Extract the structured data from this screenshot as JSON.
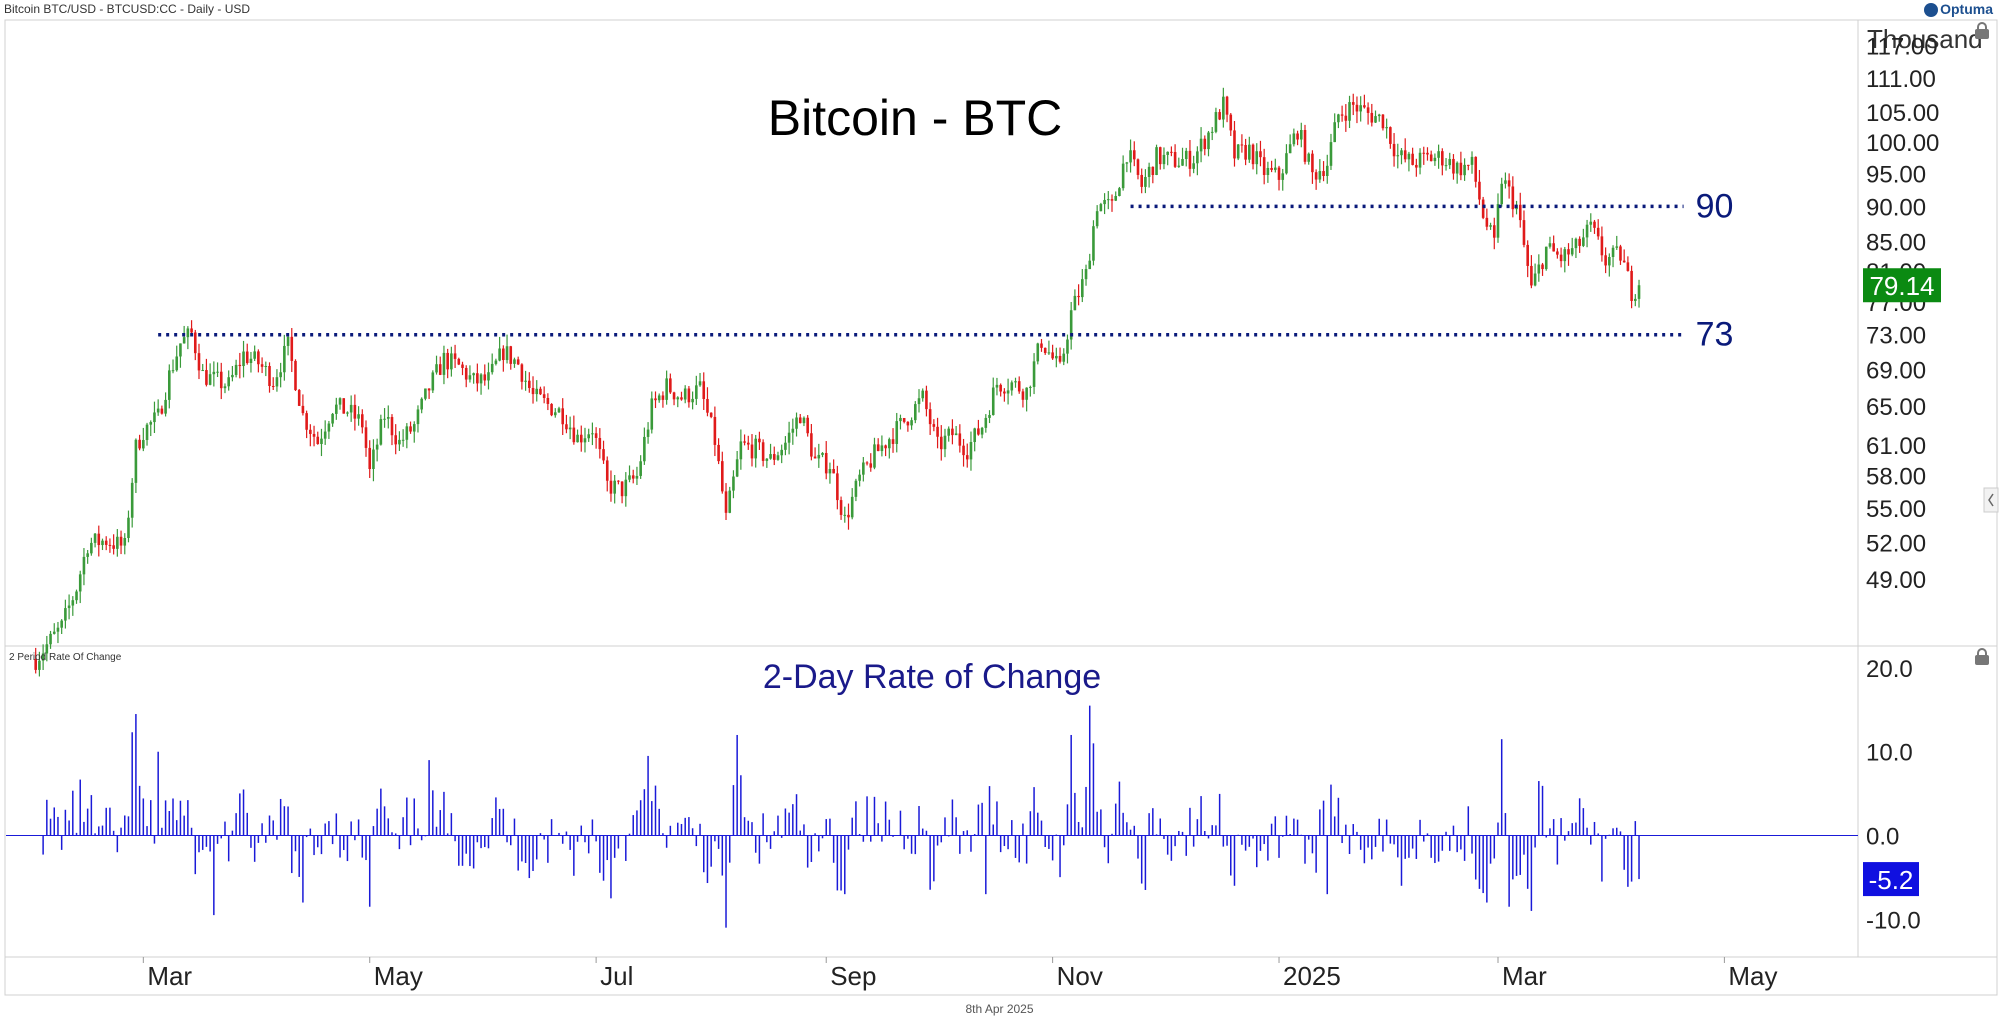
{
  "header": {
    "symbol_info": "Bitcoin BTC/USD - BTCUSD:CC - Daily - USD",
    "brand": "Optuma"
  },
  "footer": {
    "date": "8th Apr 2025"
  },
  "colors": {
    "up": "#3a9a3a",
    "down": "#e01a1a",
    "level_line": "#0a1a7a",
    "roc_bar": "#1a1ad8",
    "last_price_badge": "#0b8a12",
    "roc_badge": "#1010e0"
  },
  "icons": [
    "lock-icon",
    "collapse-chevron-icon"
  ],
  "chart_data": [
    {
      "type": "candlestick",
      "title": "Bitcoin - BTC",
      "units_label": "Thousand",
      "y_ticks": [
        49,
        52,
        55,
        58,
        61,
        65,
        69,
        73,
        77,
        81,
        85,
        90,
        95,
        100,
        105,
        111,
        117
      ],
      "y_tick_labels": [
        "49.00",
        "52.00",
        "55.00",
        "58.00",
        "61.00",
        "65.00",
        "69.00",
        "73.00",
        "77.00",
        "81.00",
        "85.00",
        "90.00",
        "95.00",
        "100.00",
        "105.00",
        "111.00",
        "117.00"
      ],
      "y_scale": "log",
      "ylim": [
        44,
        122
      ],
      "x_ticks": [
        "Mar",
        "May",
        "Jul",
        "Sep",
        "Nov",
        "2025",
        "Mar",
        "May"
      ],
      "x_tick_dates": [
        "2024-03-01",
        "2024-05-01",
        "2024-07-01",
        "2024-09-01",
        "2024-11-01",
        "2025-01-01",
        "2025-03-01",
        "2025-05-01"
      ],
      "x_range": [
        "2024-01-24",
        "2025-06-06"
      ],
      "last_value_label": "79.14",
      "levels": [
        {
          "label": "90",
          "value": 90,
          "from": "2024-11-22",
          "to": "2025-04-20"
        },
        {
          "label": "73",
          "value": 73,
          "from": "2024-03-05",
          "to": "2025-04-20"
        }
      ],
      "closes": [
        [
          "2024-02-01",
          43.0
        ],
        [
          "2024-02-08",
          45.3
        ],
        [
          "2024-02-12",
          48.3
        ],
        [
          "2024-02-15",
          51.9
        ],
        [
          "2024-02-20",
          52.2
        ],
        [
          "2024-02-25",
          51.6
        ],
        [
          "2024-02-28",
          60.7
        ],
        [
          "2024-03-01",
          62.4
        ],
        [
          "2024-03-05",
          63.8
        ],
        [
          "2024-03-08",
          68.3
        ],
        [
          "2024-03-11",
          72.0
        ],
        [
          "2024-03-14",
          73.1
        ],
        [
          "2024-03-17",
          68.4
        ],
        [
          "2024-03-20",
          67.8
        ],
        [
          "2024-03-24",
          67.2
        ],
        [
          "2024-03-28",
          70.7
        ],
        [
          "2024-04-01",
          69.7
        ],
        [
          "2024-04-05",
          67.8
        ],
        [
          "2024-04-09",
          71.6
        ],
        [
          "2024-04-13",
          64.0
        ],
        [
          "2024-04-17",
          61.3
        ],
        [
          "2024-04-21",
          64.9
        ],
        [
          "2024-04-25",
          64.5
        ],
        [
          "2024-04-29",
          63.1
        ],
        [
          "2024-05-01",
          58.3
        ],
        [
          "2024-05-05",
          64.0
        ],
        [
          "2024-05-09",
          61.2
        ],
        [
          "2024-05-13",
          62.9
        ],
        [
          "2024-05-17",
          66.9
        ],
        [
          "2024-05-21",
          70.1
        ],
        [
          "2024-05-25",
          69.3
        ],
        [
          "2024-05-29",
          67.6
        ],
        [
          "2024-06-02",
          67.8
        ],
        [
          "2024-06-06",
          71.1
        ],
        [
          "2024-06-10",
          69.6
        ],
        [
          "2024-06-14",
          66.0
        ],
        [
          "2024-06-18",
          65.1
        ],
        [
          "2024-06-22",
          64.2
        ],
        [
          "2024-06-26",
          61.7
        ],
        [
          "2024-06-30",
          62.7
        ],
        [
          "2024-07-04",
          57.1
        ],
        [
          "2024-07-08",
          56.7
        ],
        [
          "2024-07-12",
          57.9
        ],
        [
          "2024-07-16",
          64.8
        ],
        [
          "2024-07-20",
          67.1
        ],
        [
          "2024-07-24",
          65.9
        ],
        [
          "2024-07-29",
          66.8
        ],
        [
          "2024-08-02",
          61.4
        ],
        [
          "2024-08-05",
          54.0
        ],
        [
          "2024-08-09",
          60.9
        ],
        [
          "2024-08-13",
          60.6
        ],
        [
          "2024-08-17",
          59.5
        ],
        [
          "2024-08-21",
          61.2
        ],
        [
          "2024-08-25",
          64.2
        ],
        [
          "2024-08-29",
          59.4
        ],
        [
          "2024-09-02",
          59.1
        ],
        [
          "2024-09-06",
          53.9
        ],
        [
          "2024-09-10",
          57.7
        ],
        [
          "2024-09-14",
          60.0
        ],
        [
          "2024-09-18",
          61.7
        ],
        [
          "2024-09-22",
          63.4
        ],
        [
          "2024-09-27",
          65.8
        ],
        [
          "2024-10-01",
          60.8
        ],
        [
          "2024-10-05",
          62.1
        ],
        [
          "2024-10-09",
          60.6
        ],
        [
          "2024-10-13",
          62.9
        ],
        [
          "2024-10-17",
          67.4
        ],
        [
          "2024-10-21",
          67.4
        ],
        [
          "2024-10-25",
          66.6
        ],
        [
          "2024-10-29",
          72.3
        ],
        [
          "2024-11-03",
          68.8
        ],
        [
          "2024-11-06",
          75.6
        ],
        [
          "2024-11-10",
          80.5
        ],
        [
          "2024-11-13",
          90.4
        ],
        [
          "2024-11-17",
          89.8
        ],
        [
          "2024-11-21",
          98.4
        ],
        [
          "2024-11-25",
          93.0
        ],
        [
          "2024-11-29",
          97.5
        ],
        [
          "2024-12-05",
          96.9
        ],
        [
          "2024-12-09",
          97.4
        ],
        [
          "2024-12-13",
          101.4
        ],
        [
          "2024-12-17",
          106.1
        ],
        [
          "2024-12-20",
          97.8
        ],
        [
          "2024-12-24",
          98.7
        ],
        [
          "2024-12-28",
          95.3
        ],
        [
          "2025-01-01",
          94.4
        ],
        [
          "2025-01-06",
          102.1
        ],
        [
          "2025-01-10",
          94.7
        ],
        [
          "2025-01-14",
          96.6
        ],
        [
          "2025-01-17",
          104.5
        ],
        [
          "2025-01-21",
          106.1
        ],
        [
          "2025-01-25",
          104.7
        ],
        [
          "2025-01-29",
          103.7
        ],
        [
          "2025-02-02",
          97.7
        ],
        [
          "2025-02-06",
          96.6
        ],
        [
          "2025-02-10",
          97.4
        ],
        [
          "2025-02-14",
          97.5
        ],
        [
          "2025-02-18",
          95.8
        ],
        [
          "2025-02-22",
          96.2
        ],
        [
          "2025-02-25",
          88.7
        ],
        [
          "2025-02-28",
          84.4
        ],
        [
          "2025-03-02",
          94.2
        ],
        [
          "2025-03-06",
          89.9
        ],
        [
          "2025-03-10",
          78.6
        ],
        [
          "2025-03-14",
          84.0
        ],
        [
          "2025-03-18",
          82.7
        ],
        [
          "2025-03-22",
          84.0
        ],
        [
          "2025-03-26",
          86.9
        ],
        [
          "2025-03-30",
          82.4
        ],
        [
          "2025-04-03",
          83.2
        ],
        [
          "2025-04-06",
          78.4
        ],
        [
          "2025-04-08",
          79.14
        ]
      ]
    },
    {
      "type": "bar",
      "title": "2-Day Rate of Change",
      "panel_label": "2 Period Rate Of Change",
      "y_ticks": [
        -10,
        0,
        10,
        20
      ],
      "y_tick_labels": [
        "-10.0",
        "0.0",
        "10.0",
        "20.0"
      ],
      "ylim": [
        -14.5,
        22.5
      ],
      "last_value_label": "-5.2",
      "notable_bars": [
        [
          "2024-02-28",
          14.5
        ],
        [
          "2024-03-05",
          10.0
        ],
        [
          "2024-03-20",
          -9.5
        ],
        [
          "2024-04-13",
          -8.0
        ],
        [
          "2024-05-01",
          -8.5
        ],
        [
          "2024-05-17",
          9.0
        ],
        [
          "2024-07-05",
          -7.5
        ],
        [
          "2024-07-15",
          9.5
        ],
        [
          "2024-08-05",
          -11.0
        ],
        [
          "2024-08-08",
          12.0
        ],
        [
          "2024-09-06",
          -7.0
        ],
        [
          "2024-10-14",
          -7.0
        ],
        [
          "2024-11-06",
          12.0
        ],
        [
          "2024-11-11",
          15.5
        ],
        [
          "2024-11-12",
          11.0
        ],
        [
          "2024-11-26",
          -6.5
        ],
        [
          "2024-12-20",
          -6.0
        ],
        [
          "2025-01-14",
          -7.0
        ],
        [
          "2025-02-03",
          -6.0
        ],
        [
          "2025-02-26",
          -8.0
        ],
        [
          "2025-03-02",
          11.5
        ],
        [
          "2025-03-04",
          -8.5
        ],
        [
          "2025-03-10",
          -9.0
        ],
        [
          "2025-03-12",
          6.5
        ],
        [
          "2025-04-06",
          -5.5
        ],
        [
          "2025-04-08",
          -5.2
        ]
      ]
    }
  ]
}
